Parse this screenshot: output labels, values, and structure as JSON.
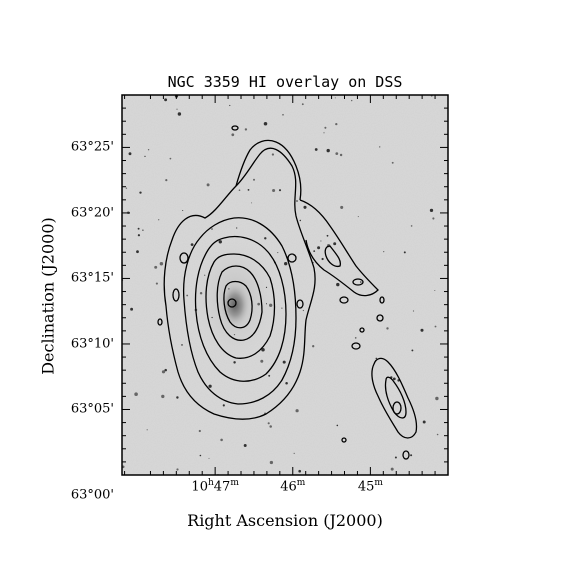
{
  "chart_data": {
    "type": "contour",
    "title": "NGC 3359 HI overlay on DSS",
    "xlabel": "Right Ascension (J2000)",
    "ylabel": "Declination (J2000)",
    "x_ticks": [
      {
        "h": "10",
        "m": "47"
      },
      {
        "h": "",
        "m": "46"
      },
      {
        "h": "",
        "m": "45"
      }
    ],
    "y_ticks": [
      "63°00'",
      "63°05'",
      "63°10'",
      "63°15'",
      "63°20'",
      "63°25'"
    ],
    "xlim_ra_min_desc": [
      48.2,
      44.0
    ],
    "ylim_dec_arcmin": [
      0,
      29
    ],
    "grid": false,
    "background": "grayscale optical image (DSS)",
    "colors": {
      "contour": "#000000",
      "frame": "#000000",
      "sky": "#d9d9d9"
    }
  }
}
